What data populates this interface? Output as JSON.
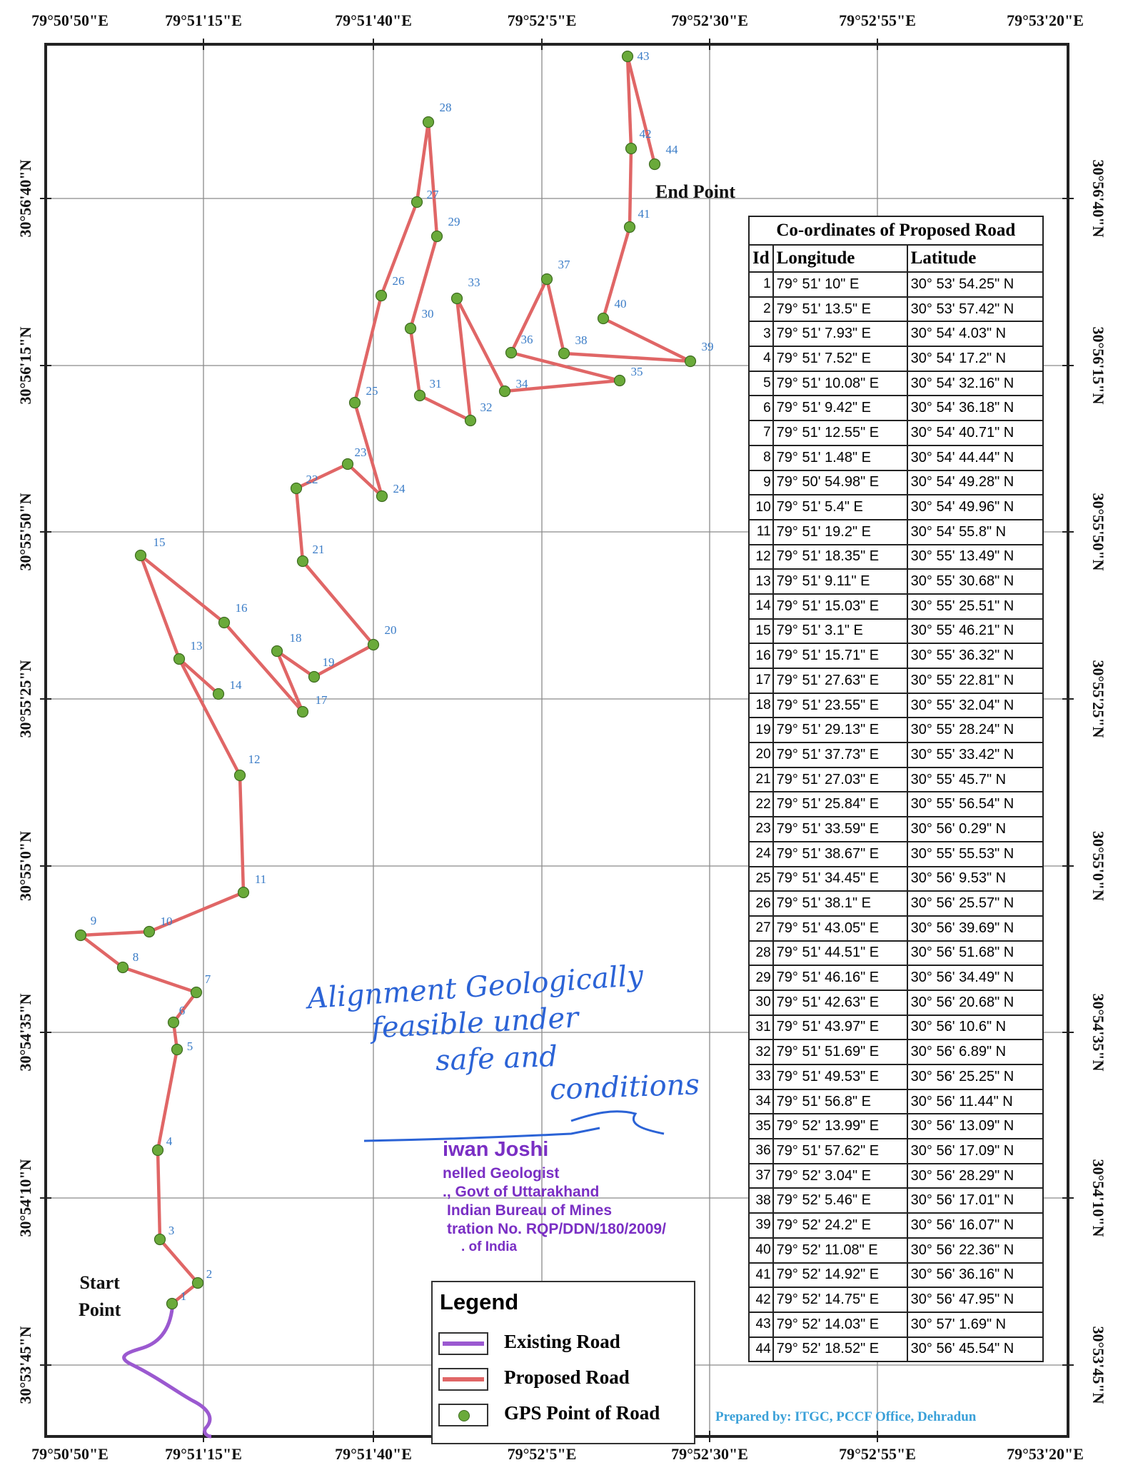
{
  "map": {
    "lon_ticks_top": [
      "79°50'50\"E",
      "79°51'15\"E",
      "79°51'40\"E",
      "79°52'5\"E",
      "79°52'30\"E",
      "79°52'55\"E",
      "79°53'20\"E"
    ],
    "lon_ticks_bottom": [
      "79°50'50\"E",
      "79°51'15\"E",
      "79°51'40\"E",
      "79°52'5\"E",
      "79°52'30\"E",
      "79°52'55\"E",
      "79°53'20\"E"
    ],
    "lat_ticks": [
      "30°56'40\"N",
      "30°56'15\"N",
      "30°55'50\"N",
      "30°55'25\"N",
      "30°55'0\"N",
      "30°54'35\"N",
      "30°54'10\"N",
      "30°53'45\"N"
    ],
    "start_label": "Start Point",
    "end_label": "End Point",
    "colors": {
      "proposed_road": "#e06666",
      "existing_road": "#9b59d0",
      "gps_point": "#6aaa3a",
      "label": "#3a7cc7"
    }
  },
  "gps_points": [
    {
      "id": "1"
    },
    {
      "id": "2"
    },
    {
      "id": "3"
    },
    {
      "id": "4"
    },
    {
      "id": "5"
    },
    {
      "id": "6"
    },
    {
      "id": "7"
    },
    {
      "id": "8"
    },
    {
      "id": "9"
    },
    {
      "id": "10"
    },
    {
      "id": "11"
    },
    {
      "id": "12"
    },
    {
      "id": "13"
    },
    {
      "id": "14"
    },
    {
      "id": "15"
    },
    {
      "id": "16"
    },
    {
      "id": "17"
    },
    {
      "id": "18"
    },
    {
      "id": "19"
    },
    {
      "id": "20"
    },
    {
      "id": "21"
    },
    {
      "id": "22"
    },
    {
      "id": "23"
    },
    {
      "id": "24"
    },
    {
      "id": "25"
    },
    {
      "id": "26"
    },
    {
      "id": "27"
    },
    {
      "id": "28"
    },
    {
      "id": "29"
    },
    {
      "id": "30"
    },
    {
      "id": "31"
    },
    {
      "id": "32"
    },
    {
      "id": "33"
    },
    {
      "id": "34"
    },
    {
      "id": "35"
    },
    {
      "id": "36"
    },
    {
      "id": "37"
    },
    {
      "id": "38"
    },
    {
      "id": "39"
    },
    {
      "id": "40"
    },
    {
      "id": "41"
    },
    {
      "id": "42"
    },
    {
      "id": "43"
    },
    {
      "id": "44"
    }
  ],
  "table": {
    "title": "Co-ordinates of Proposed Road",
    "columns": [
      "Id",
      "Longitude",
      "Latitude"
    ],
    "rows": [
      [
        "1",
        "79° 51' 10\" E",
        "30° 53' 54.25\" N"
      ],
      [
        "2",
        "79° 51' 13.5\" E",
        "30° 53' 57.42\" N"
      ],
      [
        "3",
        "79° 51' 7.93\" E",
        "30° 54' 4.03\" N"
      ],
      [
        "4",
        "79° 51' 7.52\" E",
        "30° 54' 17.2\" N"
      ],
      [
        "5",
        "79° 51' 10.08\" E",
        "30° 54' 32.16\" N"
      ],
      [
        "6",
        "79° 51' 9.42\" E",
        "30° 54' 36.18\" N"
      ],
      [
        "7",
        "79° 51' 12.55\" E",
        "30° 54' 40.71\" N"
      ],
      [
        "8",
        "79° 51' 1.48\" E",
        "30° 54' 44.44\" N"
      ],
      [
        "9",
        "79° 50' 54.98\" E",
        "30° 54' 49.28\" N"
      ],
      [
        "10",
        "79° 51' 5.4\" E",
        "30° 54' 49.96\" N"
      ],
      [
        "11",
        "79° 51' 19.2\" E",
        "30° 54' 55.8\" N"
      ],
      [
        "12",
        "79° 51' 18.35\" E",
        "30° 55' 13.49\" N"
      ],
      [
        "13",
        "79° 51' 9.11\" E",
        "30° 55' 30.68\" N"
      ],
      [
        "14",
        "79° 51' 15.03\" E",
        "30° 55' 25.51\" N"
      ],
      [
        "15",
        "79° 51' 3.1\" E",
        "30° 55' 46.21\" N"
      ],
      [
        "16",
        "79° 51' 15.71\" E",
        "30° 55' 36.32\" N"
      ],
      [
        "17",
        "79° 51' 27.63\" E",
        "30° 55' 22.81\" N"
      ],
      [
        "18",
        "79° 51' 23.55\" E",
        "30° 55' 32.04\" N"
      ],
      [
        "19",
        "79° 51' 29.13\" E",
        "30° 55' 28.24\" N"
      ],
      [
        "20",
        "79° 51' 37.73\" E",
        "30° 55' 33.42\" N"
      ],
      [
        "21",
        "79° 51' 27.03\" E",
        "30° 55' 45.7\" N"
      ],
      [
        "22",
        "79° 51' 25.84\" E",
        "30° 55' 56.54\" N"
      ],
      [
        "23",
        "79° 51' 33.59\" E",
        "30° 56' 0.29\" N"
      ],
      [
        "24",
        "79° 51' 38.67\" E",
        "30° 55' 55.53\" N"
      ],
      [
        "25",
        "79° 51' 34.45\" E",
        "30° 56' 9.53\" N"
      ],
      [
        "26",
        "79° 51' 38.1\" E",
        "30° 56' 25.57\" N"
      ],
      [
        "27",
        "79° 51' 43.05\" E",
        "30° 56' 39.69\" N"
      ],
      [
        "28",
        "79° 51' 44.51\" E",
        "30° 56' 51.68\" N"
      ],
      [
        "29",
        "79° 51' 46.16\" E",
        "30° 56' 34.49\" N"
      ],
      [
        "30",
        "79° 51' 42.63\" E",
        "30° 56' 20.68\" N"
      ],
      [
        "31",
        "79° 51' 43.97\" E",
        "30° 56' 10.6\" N"
      ],
      [
        "32",
        "79° 51' 51.69\" E",
        "30° 56' 6.89\" N"
      ],
      [
        "33",
        "79° 51' 49.53\" E",
        "30° 56' 25.25\" N"
      ],
      [
        "34",
        "79° 51' 56.8\" E",
        "30° 56' 11.44\" N"
      ],
      [
        "35",
        "79° 52' 13.99\" E",
        "30° 56' 13.09\" N"
      ],
      [
        "36",
        "79° 51' 57.62\" E",
        "30° 56' 17.09\" N"
      ],
      [
        "37",
        "79° 52' 3.04\" E",
        "30° 56' 28.29\" N"
      ],
      [
        "38",
        "79° 52' 5.46\" E",
        "30° 56' 17.01\" N"
      ],
      [
        "39",
        "79° 52' 24.2\" E",
        "30° 56' 16.07\" N"
      ],
      [
        "40",
        "79° 52' 11.08\" E",
        "30° 56' 22.36\" N"
      ],
      [
        "41",
        "79° 52' 14.92\" E",
        "30° 56' 36.16\" N"
      ],
      [
        "42",
        "79° 52' 14.75\" E",
        "30° 56' 47.95\" N"
      ],
      [
        "43",
        "79° 52' 14.03\" E",
        "30° 57' 1.69\" N"
      ],
      [
        "44",
        "79° 52' 18.52\" E",
        "30° 56' 45.54\" N"
      ]
    ]
  },
  "legend": {
    "title": "Legend",
    "items": [
      {
        "label": "Existing Road",
        "color": "#9b59d0"
      },
      {
        "label": "Proposed Road",
        "color": "#e06666"
      },
      {
        "label": "GPS Point of Road",
        "color": "#6aaa3a"
      }
    ]
  },
  "annotations": {
    "handwritten": [
      "Alignment Geologically",
      "feasible under",
      "safe and",
      "conditions"
    ],
    "stamp_lines": [
      "iwan Joshi",
      "nelled Geologist",
      "., Govt of Uttarakhand",
      "Indian Bureau of Mines",
      "tration No. RQP/DDN/180/2009/",
      ". of India"
    ]
  },
  "credit": "Prepared by: ITGC, PCCF Office, Dehradun"
}
